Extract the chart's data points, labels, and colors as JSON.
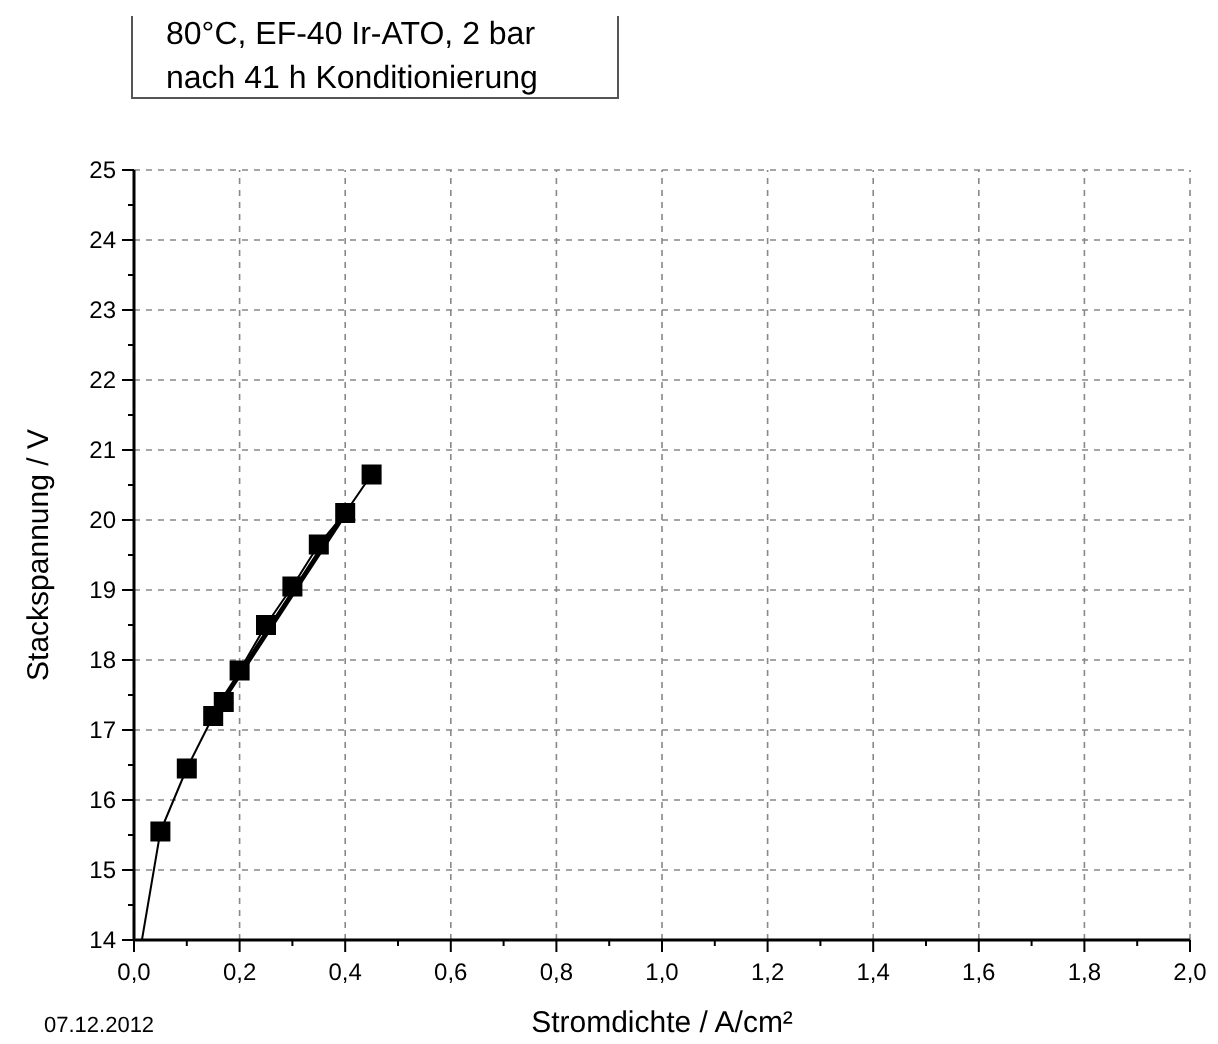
{
  "chart_data": {
    "type": "line",
    "title": "80°C, EF-40 Ir-ATO, 2 bar\nnach 41 h Konditionierung",
    "xlabel": "Stromdichte / A/cm²",
    "ylabel": "Stackspannung / V",
    "annotations": [
      "07.12.2012"
    ],
    "series": [
      {
        "color": "#000000",
        "marker": "square",
        "x": [
          0.05,
          0.1,
          0.15,
          0.17,
          0.2,
          0.25,
          0.3,
          0.35,
          0.4,
          0.45
        ],
        "values": [
          15.55,
          16.45,
          17.2,
          17.4,
          17.85,
          18.5,
          19.05,
          19.65,
          20.1,
          20.65
        ]
      },
      {
        "color": "#000000",
        "marker": "none",
        "x": [
          0.015,
          0.05
        ],
        "values": [
          14,
          15.55
        ]
      },
      {
        "color": "#000000",
        "marker": "none",
        "x": [
          0.17,
          0.4
        ],
        "values": [
          17.45,
          20.1
        ]
      }
    ],
    "xlim": [
      0,
      2
    ],
    "ylim": [
      14,
      25
    ],
    "xticks": [
      {
        "value": 0,
        "label": "0,0"
      },
      {
        "value": 0.2,
        "label": "0,2"
      },
      {
        "value": 0.4,
        "label": "0,4"
      },
      {
        "value": 0.6,
        "label": "0,6"
      },
      {
        "value": 0.8,
        "label": "0,8"
      },
      {
        "value": 1,
        "label": "1,0"
      },
      {
        "value": 1.2,
        "label": "1,2"
      },
      {
        "value": 1.4,
        "label": "1,4"
      },
      {
        "value": 1.6,
        "label": "1,6"
      },
      {
        "value": 1.8,
        "label": "1,8"
      },
      {
        "value": 2,
        "label": "2,0"
      }
    ],
    "yticks": [
      14,
      15,
      16,
      17,
      18,
      19,
      20,
      21,
      22,
      23,
      24,
      25
    ],
    "grid": true,
    "line_style": "solid"
  }
}
